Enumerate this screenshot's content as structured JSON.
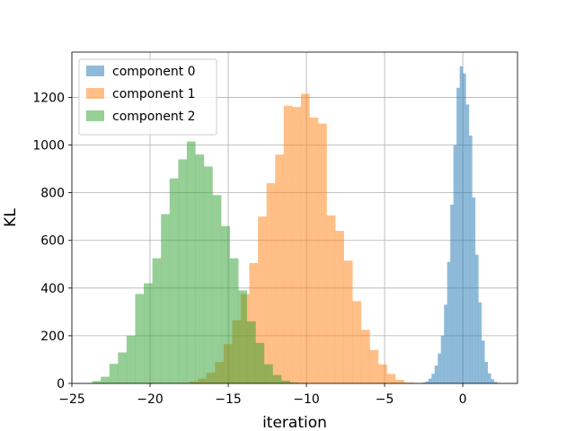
{
  "chart_data": {
    "type": "histogram",
    "title": "",
    "xlabel": "iteration",
    "ylabel": "KL",
    "xlim": [
      -25,
      3.5
    ],
    "ylim": [
      0,
      1390
    ],
    "xticks": [
      -25,
      -20,
      -15,
      -10,
      -5,
      0
    ],
    "yticks": [
      0,
      200,
      400,
      600,
      800,
      1000,
      1200
    ],
    "grid": true,
    "legend_position": "top-left",
    "series": [
      {
        "name": "component 0",
        "color": "#1f77b4",
        "opacity": 0.5,
        "bin_start": -2.6,
        "bin_width": 0.2,
        "counts": [
          3,
          8,
          20,
          40,
          75,
          125,
          200,
          330,
          510,
          750,
          1000,
          1240,
          1330,
          1300,
          1170,
          1040,
          780,
          540,
          340,
          180,
          90,
          42,
          18,
          6,
          2
        ]
      },
      {
        "name": "component 1",
        "color": "#ff7f0e",
        "opacity": 0.5,
        "bin_start": -18.05,
        "bin_width": 0.55,
        "counts": [
          2,
          8,
          20,
          45,
          90,
          165,
          265,
          375,
          505,
          700,
          840,
          960,
          1165,
          1160,
          1215,
          1115,
          1090,
          705,
          640,
          515,
          345,
          225,
          140,
          80,
          40,
          15,
          4,
          2
        ]
      },
      {
        "name": "component 2",
        "color": "#2ca02c",
        "opacity": 0.5,
        "bin_start": -23.7,
        "bin_width": 0.55,
        "counts": [
          10,
          28,
          82,
          130,
          200,
          375,
          420,
          525,
          710,
          860,
          940,
          1015,
          960,
          910,
          790,
          660,
          525,
          390,
          260,
          170,
          80,
          35,
          12,
          4
        ]
      }
    ]
  }
}
